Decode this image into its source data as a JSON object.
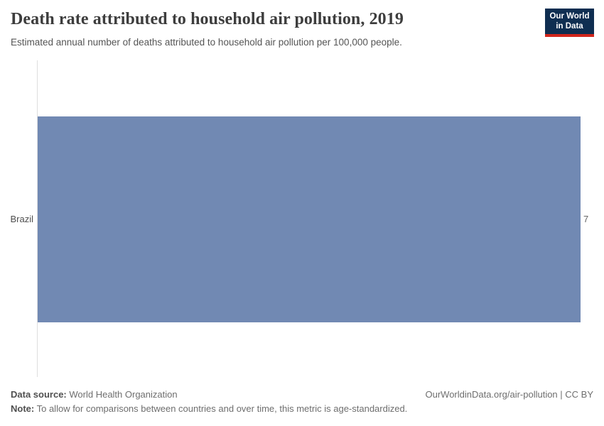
{
  "header": {
    "title": "Death rate attributed to household air pollution, 2019",
    "subtitle": "Estimated annual number of deaths attributed to household air pollution per 100,000 people.",
    "logo": {
      "line1": "Our World",
      "line2": "in Data"
    }
  },
  "chart_data": {
    "type": "bar",
    "orientation": "horizontal",
    "categories": [
      "Brazil"
    ],
    "values": [
      7
    ],
    "value_labels": [
      "7"
    ],
    "title": "Death rate attributed to household air pollution, 2019",
    "xlabel": "",
    "ylabel": "",
    "xlim": [
      0,
      7
    ],
    "grid": false,
    "legend": "none"
  },
  "chart": {
    "entity_label": "Brazil",
    "value_label": "7"
  },
  "footer": {
    "source_label": "Data source:",
    "source_value": "World Health Organization",
    "note_label": "Note:",
    "note_value": "To allow for comparisons between countries and over time, this metric is age-standardized.",
    "citation": "OurWorldinData.org/air-pollution | CC BY"
  },
  "colors": {
    "bar": "#7189b3",
    "axis_line": "#dedede",
    "logo_background": "#0f2e51",
    "logo_accent": "#d2261c",
    "title_text": "#3d3d3d",
    "subtitle_text": "#555555",
    "footer_text": "#6e6e6e"
  }
}
